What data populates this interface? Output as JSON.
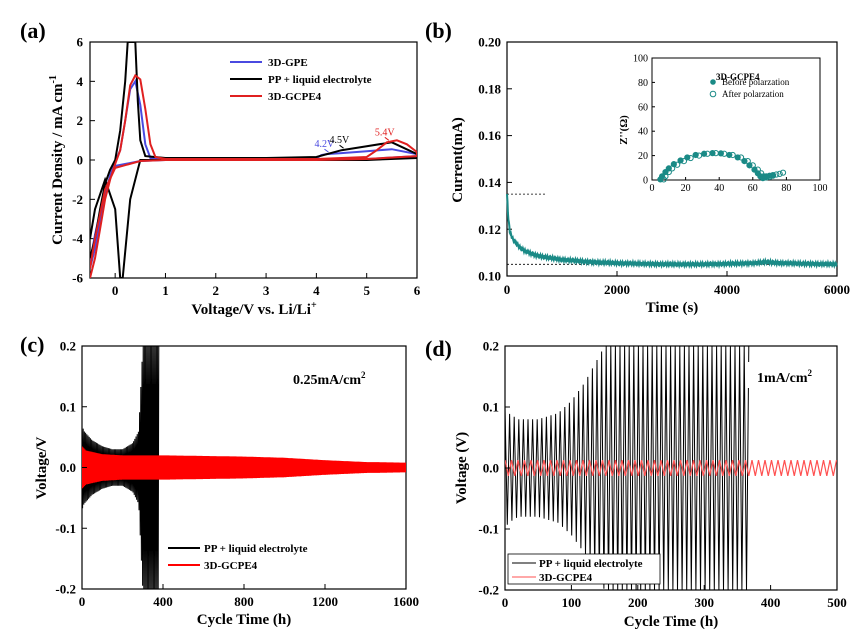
{
  "chart_data": [
    {
      "panel": "(a)",
      "type": "line",
      "xlabel": "Voltage/V vs. Li/Li",
      "xlabel_sup": "+",
      "ylabel": "Current Density / mA cm",
      "ylabel_sup": "-1",
      "xlim": [
        -0.5,
        6
      ],
      "ylim": [
        -6,
        6
      ],
      "xticks": [
        0,
        1,
        2,
        3,
        4,
        5,
        6
      ],
      "yticks": [
        -6,
        -4,
        -2,
        0,
        2,
        4,
        6
      ],
      "legend": "top-right",
      "series": [
        {
          "name": "3D-GPE",
          "color": "#4a4ae0",
          "x": [
            -0.5,
            -0.4,
            -0.3,
            -0.2,
            -0.1,
            0,
            0.1,
            0.2,
            0.3,
            0.4,
            0.5,
            0.6,
            0.7,
            1,
            2,
            3,
            4,
            4.1,
            4.2,
            4.5,
            5,
            5.5,
            6,
            6,
            5,
            4,
            3,
            2,
            1,
            0.5,
            0,
            -0.2,
            -0.4,
            -0.5
          ],
          "y": [
            -5.5,
            -4.5,
            -3,
            -1.8,
            -0.8,
            -0.1,
            0.5,
            2,
            3.6,
            4.0,
            2.8,
            0.8,
            0.1,
            0.05,
            0.05,
            0.05,
            0.1,
            0.25,
            0.3,
            0.35,
            0.45,
            0.55,
            0.3,
            0.2,
            0.05,
            0.02,
            0.0,
            0.0,
            0.0,
            -0.05,
            -0.3,
            -1.5,
            -3.8,
            -5.2
          ]
        },
        {
          "name": "PP + liquid electrolyte",
          "color": "#000000",
          "x": [
            -0.5,
            -0.4,
            -0.3,
            -0.2,
            -0.1,
            0,
            0.1,
            0.2,
            0.25,
            0.3,
            0.35,
            0.4,
            0.45,
            0.5,
            0.6,
            1,
            2,
            3,
            4,
            4.5,
            5,
            5.5,
            6,
            6,
            5,
            4,
            3,
            2,
            1,
            0.5,
            0.3,
            0.15,
            0.1,
            0,
            -0.2,
            -0.4,
            -0.5
          ],
          "y": [
            -5,
            -4,
            -2.5,
            -1.2,
            -0.5,
            0,
            1.5,
            4,
            6,
            6,
            6,
            6,
            3,
            1,
            0.2,
            0.1,
            0.1,
            0.1,
            0.15,
            0.5,
            0.7,
            0.9,
            0.3,
            0.1,
            0.0,
            0.0,
            0.0,
            0.0,
            0.0,
            0.0,
            -2,
            -6,
            -6,
            -2.5,
            -1,
            -2.5,
            -4
          ]
        },
        {
          "name": "3D-GCPE4",
          "color": "#e02020",
          "x": [
            -0.5,
            -0.4,
            -0.3,
            -0.2,
            -0.1,
            0,
            0.1,
            0.2,
            0.3,
            0.4,
            0.5,
            0.6,
            0.7,
            0.8,
            1,
            2,
            3,
            4,
            5,
            5.2,
            5.4,
            5.6,
            5.8,
            6,
            6,
            5,
            4,
            3,
            2,
            1,
            0.5,
            0,
            -0.2,
            -0.4,
            -0.5
          ],
          "y": [
            -6,
            -5,
            -3.5,
            -2,
            -1,
            -0.2,
            0.5,
            2,
            3.8,
            4.3,
            4.1,
            2.6,
            0.8,
            0.15,
            0.05,
            0.05,
            0.05,
            0.05,
            0.15,
            0.5,
            0.9,
            1.0,
            0.8,
            0.4,
            0.2,
            0.05,
            0.0,
            0.0,
            0.0,
            0.0,
            -0.05,
            -0.4,
            -1.5,
            -4,
            -5.5
          ]
        }
      ],
      "annotations": [
        {
          "text": "4.2V",
          "x": 4.2,
          "y": 0.35,
          "color": "#4a4ae0"
        },
        {
          "text": "4.5V",
          "x": 4.5,
          "y": 0.55,
          "color": "#000000"
        },
        {
          "text": "5.4V",
          "x": 5.4,
          "y": 0.95,
          "color": "#e02020"
        }
      ]
    },
    {
      "panel": "(b)",
      "type": "line",
      "xlabel": "Time (s)",
      "ylabel": "Current(mA)",
      "xlim": [
        0,
        6000
      ],
      "ylim": [
        0.1,
        0.2
      ],
      "xticks": [
        0,
        2000,
        4000,
        6000
      ],
      "yticks": [
        0.1,
        0.12,
        0.14,
        0.16,
        0.18,
        0.2
      ],
      "ytick_labels": [
        "0.10",
        "0.12",
        "0.14",
        "0.16",
        "0.18",
        "0.20"
      ],
      "series": [
        {
          "name": "",
          "color": "#1a8a86",
          "x": [
            0,
            20,
            50,
            100,
            200,
            300,
            400,
            500,
            700,
            1000,
            1500,
            2000,
            2500,
            3000,
            3500,
            4000,
            4500,
            4700,
            5000,
            5500,
            6000
          ],
          "y": [
            0.135,
            0.126,
            0.119,
            0.116,
            0.113,
            0.111,
            0.11,
            0.109,
            0.108,
            0.107,
            0.106,
            0.1055,
            0.1052,
            0.105,
            0.105,
            0.1052,
            0.1055,
            0.106,
            0.1055,
            0.1052,
            0.105
          ]
        }
      ],
      "reference_lines": [
        {
          "y": 0.135,
          "x": [
            0,
            700
          ]
        },
        {
          "y": 0.105,
          "x": [
            0,
            6000
          ]
        }
      ],
      "inset": {
        "type": "scatter",
        "title": "3D-GCPE4",
        "ylabel": "Z''(Ω)",
        "xlim": [
          0,
          100
        ],
        "ylim": [
          0,
          100
        ],
        "xticks": [
          0,
          20,
          40,
          60,
          80,
          100
        ],
        "yticks": [
          0,
          20,
          40,
          60,
          80,
          100
        ],
        "series": [
          {
            "name": "Before polarzation",
            "marker": "filled",
            "color": "#1a8a86",
            "x": [
              5,
              6,
              8,
              10,
              13,
              17,
              21,
              26,
              31,
              36,
              41,
              46,
              51,
              55,
              58,
              61,
              63,
              64.5,
              66,
              67,
              68,
              70,
              72
            ],
            "y": [
              0.5,
              3,
              6.5,
              9.5,
              13,
              16,
              18.5,
              20.5,
              21.5,
              22,
              21.8,
              20.5,
              18.5,
              15.5,
              12,
              8.5,
              5.5,
              3,
              1.5,
              2,
              3,
              3.5,
              4
            ]
          },
          {
            "name": "After polarzation",
            "marker": "hollow",
            "color": "#1a8a86",
            "x": [
              7,
              8,
              10,
              12,
              15,
              19,
              23,
              28,
              33,
              38,
              43,
              48,
              53,
              57,
              60,
              63,
              65,
              66.5,
              68,
              70,
              72,
              74,
              76,
              78
            ],
            "y": [
              0.5,
              3,
              6.5,
              9.5,
              12.5,
              15.5,
              18,
              20,
              21.5,
              22,
              21.5,
              20.5,
              18.5,
              15.5,
              12,
              8.5,
              5.5,
              3,
              2,
              2.5,
              3.5,
              4.5,
              5,
              6
            ]
          }
        ]
      }
    },
    {
      "panel": "(c)",
      "type": "line",
      "xlabel": "Cycle Time (h)",
      "ylabel": "Voltage/V",
      "xlim": [
        0,
        1600
      ],
      "ylim": [
        -0.2,
        0.2
      ],
      "xticks": [
        0,
        400,
        800,
        1200,
        1600
      ],
      "yticks": [
        -0.2,
        -0.1,
        0.0,
        0.1,
        0.2
      ],
      "ytick_labels": [
        "-0.2",
        "-0.1",
        "0.0",
        "0.1",
        "0.2"
      ],
      "annotation": "0.25mA/cm",
      "annotation_sup": "2",
      "legend": "bottom-left",
      "series": [
        {
          "name": "PP + liquid electrolyte",
          "color": "#000000",
          "envelope_x": [
            0,
            10,
            50,
            100,
            150,
            200,
            250,
            280,
            300,
            320,
            340,
            360,
            380
          ],
          "envelope_y": [
            0.07,
            0.06,
            0.045,
            0.035,
            0.03,
            0.03,
            0.04,
            0.06,
            0.2,
            0.2,
            0.2,
            0.2,
            0.2
          ]
        },
        {
          "name": "3D-GCPE4",
          "color": "#ff0000",
          "envelope_x": [
            0,
            20,
            100,
            200,
            400,
            600,
            800,
            1000,
            1200,
            1400,
            1600
          ],
          "envelope_y": [
            0.035,
            0.028,
            0.022,
            0.02,
            0.02,
            0.019,
            0.018,
            0.016,
            0.012,
            0.009,
            0.008
          ]
        }
      ]
    },
    {
      "panel": "(d)",
      "type": "line",
      "xlabel": "Cycle Time (h)",
      "ylabel": "Voltage (V)",
      "xlim": [
        0,
        500
      ],
      "ylim": [
        -0.2,
        0.2
      ],
      "xticks": [
        0,
        100,
        200,
        300,
        400,
        500
      ],
      "yticks": [
        -0.2,
        -0.1,
        0.0,
        0.1,
        0.2
      ],
      "ytick_labels": [
        "-0.2",
        "-0.1",
        "0.0",
        "0.1",
        "0.2"
      ],
      "annotation": "1mA/cm",
      "annotation_sup": "2",
      "legend": "bottom-left",
      "series": [
        {
          "name": "PP + liquid electrolyte",
          "color": "#000000",
          "envelope_x": [
            0,
            5,
            20,
            50,
            80,
            100,
            120,
            140,
            150,
            200,
            250,
            300,
            350,
            370
          ],
          "envelope_y": [
            0.1,
            0.09,
            0.08,
            0.08,
            0.09,
            0.11,
            0.14,
            0.18,
            0.2,
            0.2,
            0.2,
            0.2,
            0.2,
            0.2
          ]
        },
        {
          "name": "3D-GCPE4",
          "color": "#ff5050",
          "envelope_x": [
            0,
            500
          ],
          "envelope_y": [
            0.013,
            0.013
          ]
        }
      ]
    }
  ]
}
